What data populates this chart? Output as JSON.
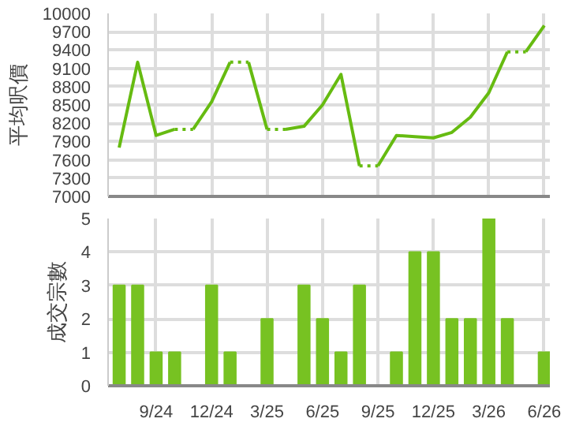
{
  "chart_data": [
    {
      "type": "line",
      "ylabel": "平均呎價",
      "categories": [
        null,
        null,
        null,
        null,
        null,
        null,
        null,
        null,
        null,
        null,
        null,
        null,
        null,
        null,
        null,
        null,
        null,
        null,
        null,
        null,
        null,
        null,
        null,
        null
      ],
      "series": [
        {
          "color": "#66bb11",
          "line_style": "solid",
          "values": [
            7800,
            9200,
            8000,
            8100,
            null,
            null,
            null,
            9200,
            8100,
            null,
            null,
            null,
            null,
            null,
            7500,
            8000,
            7980,
            7960,
            8050,
            8300,
            8700,
            9370,
            null,
            null
          ]
        },
        {
          "color": "#66bb11",
          "line_style": "solid",
          "values": [
            null,
            null,
            null,
            null,
            8100,
            8550,
            9200,
            null,
            null,
            8100,
            8150,
            8500,
            9000,
            7500,
            null,
            null,
            null,
            null,
            null,
            null,
            null,
            null,
            9370,
            9800
          ]
        },
        {
          "color": "#66bb11",
          "line_style": "dotted",
          "values": [
            null,
            null,
            null,
            8100,
            8100,
            null,
            null,
            null,
            8100,
            8100,
            null,
            null,
            null,
            null,
            null,
            null,
            null,
            null,
            null,
            null,
            null,
            9370,
            9370,
            null
          ]
        },
        {
          "color": "#66bb11",
          "line_style": "dotted",
          "values": [
            null,
            null,
            null,
            null,
            null,
            null,
            9200,
            9200,
            null,
            null,
            null,
            null,
            null,
            7500,
            7500,
            null,
            null,
            null,
            null,
            null,
            null,
            null,
            null,
            null
          ]
        }
      ],
      "ylim": [
        7000,
        10000
      ],
      "yticks": [
        7000,
        7300,
        7600,
        7900,
        8200,
        8500,
        8800,
        9100,
        9400,
        9700,
        10000
      ],
      "grid": true,
      "tick_labels": "y",
      "marker": "none"
    },
    {
      "type": "bar",
      "ylabel": "成交宗數",
      "categories": [
        null,
        null,
        "9/24",
        null,
        null,
        "12/24",
        null,
        null,
        "3/25",
        null,
        null,
        "6/25",
        null,
        null,
        "9/25",
        null,
        null,
        "12/25",
        null,
        null,
        "3/26",
        null,
        null,
        "6/26"
      ],
      "values": [
        3,
        3,
        1,
        1,
        0,
        3,
        1,
        0,
        2,
        0,
        3,
        2,
        1,
        3,
        0,
        1,
        4,
        4,
        2,
        2,
        5,
        2,
        0,
        1
      ],
      "color": "#77c222",
      "ylim": [
        0,
        5
      ],
      "yticks": [
        0,
        1,
        2,
        3,
        4,
        5
      ],
      "grid": true
    }
  ]
}
